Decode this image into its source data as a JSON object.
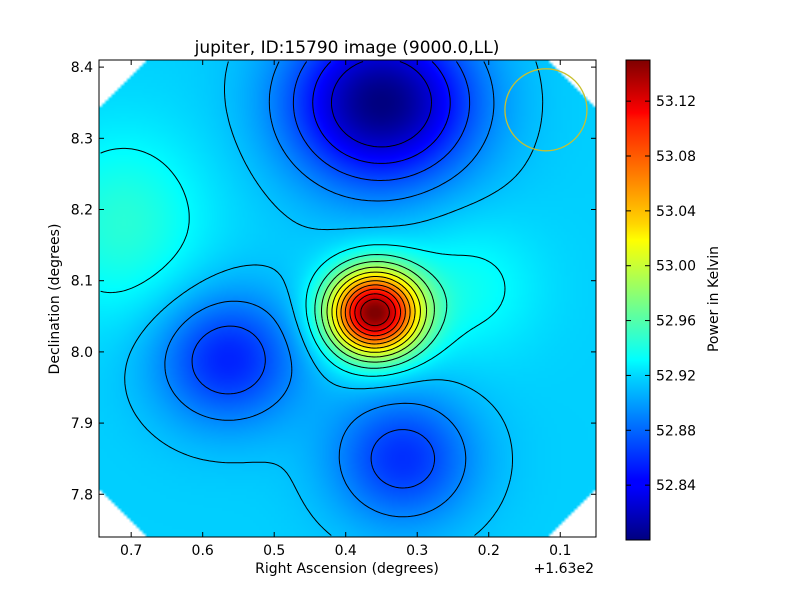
{
  "chart_data": {
    "type": "heatmap",
    "title": "jupiter, ID:15790 image (9000.0,LL)",
    "xlabel": "Right Ascension (degrees)",
    "ylabel": "Declination (degrees)",
    "x_offset_label": "+1.63e2",
    "colorbar_label": "Power in Kelvin",
    "xlim": [
      0.745,
      0.05
    ],
    "ylim": [
      7.74,
      8.41
    ],
    "x_ticks": [
      0.7,
      0.6,
      0.5,
      0.4,
      0.3,
      0.2,
      0.1
    ],
    "x_tick_labels": [
      "0.7",
      "0.6",
      "0.5",
      "0.4",
      "0.3",
      "0.2",
      "0.1"
    ],
    "y_ticks": [
      7.8,
      7.9,
      8.0,
      8.1,
      8.2,
      8.3,
      8.4
    ],
    "y_tick_labels": [
      "7.8",
      "7.9",
      "8.0",
      "8.1",
      "8.2",
      "8.3",
      "8.4"
    ],
    "colorbar_range": [
      52.8,
      53.15
    ],
    "colorbar_ticks": [
      52.84,
      52.88,
      52.92,
      52.96,
      53.0,
      53.04,
      53.08,
      53.12
    ],
    "colorbar_tick_labels": [
      "52.84",
      "52.88",
      "52.92",
      "52.96",
      "53.00",
      "53.04",
      "53.08",
      "53.12"
    ],
    "colormap": "jet",
    "contours": "black",
    "features": [
      {
        "kind": "peak",
        "x": 0.36,
        "y": 8.055,
        "value": 53.15
      },
      {
        "kind": "trough",
        "x": 0.35,
        "y": 8.35,
        "value": 52.8
      },
      {
        "kind": "trough",
        "x": 0.565,
        "y": 7.99,
        "value": 52.855
      },
      {
        "kind": "trough",
        "x": 0.32,
        "y": 7.85,
        "value": 52.86
      },
      {
        "kind": "high",
        "x": 0.71,
        "y": 8.18,
        "value": 52.945
      },
      {
        "kind": "high",
        "x": 0.23,
        "y": 8.09,
        "value": 52.935
      }
    ],
    "beam": {
      "x": 0.12,
      "y": 8.34,
      "color": "#c8c030"
    }
  }
}
